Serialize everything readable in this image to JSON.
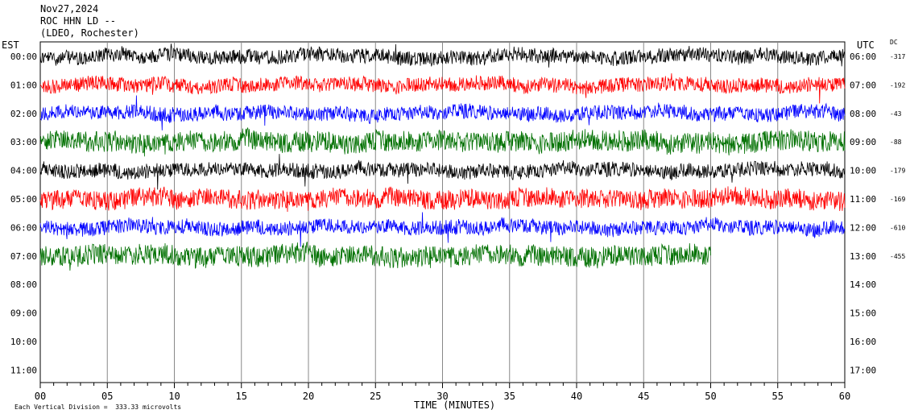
{
  "header": {
    "date": "Nov27,2024",
    "station": "ROC HHN LD --",
    "network": "(LDEO, Rochester)"
  },
  "chart_data": {
    "type": "line",
    "title": "",
    "xlabel": "TIME (MINUTES)",
    "ylabel_left": "EST",
    "ylabel_right": "UTC",
    "dc_header": "DC",
    "xlim": [
      0,
      60
    ],
    "x_ticks": [
      "00",
      "05",
      "10",
      "15",
      "20",
      "25",
      "30",
      "35",
      "40",
      "45",
      "50",
      "55",
      "60"
    ],
    "rows_est": [
      "00:00",
      "01:00",
      "02:00",
      "03:00",
      "04:00",
      "05:00",
      "06:00",
      "07:00",
      "08:00",
      "09:00",
      "10:00",
      "11:00"
    ],
    "rows_utc": [
      "06:00",
      "07:00",
      "08:00",
      "09:00",
      "10:00",
      "11:00",
      "12:00",
      "13:00",
      "14:00",
      "15:00",
      "16:00",
      "17:00"
    ],
    "traces": [
      {
        "row": 0,
        "color": "#000000",
        "dc": "-317",
        "end_minute": 60
      },
      {
        "row": 1,
        "color": "#ff0000",
        "dc": "-192",
        "end_minute": 60
      },
      {
        "row": 2,
        "color": "#0000ff",
        "dc": "-43",
        "end_minute": 60
      },
      {
        "row": 3,
        "color": "#007000",
        "dc": "-88",
        "end_minute": 60
      },
      {
        "row": 4,
        "color": "#000000",
        "dc": "-179",
        "end_minute": 60
      },
      {
        "row": 5,
        "color": "#ff0000",
        "dc": "-169",
        "end_minute": 60
      },
      {
        "row": 6,
        "color": "#0000ff",
        "dc": "-610",
        "end_minute": 60
      },
      {
        "row": 7,
        "color": "#007000",
        "dc": "-455",
        "end_minute": 50
      }
    ],
    "footnote": "Each Vertical Division =  333.33 microvolts",
    "grid": true
  }
}
